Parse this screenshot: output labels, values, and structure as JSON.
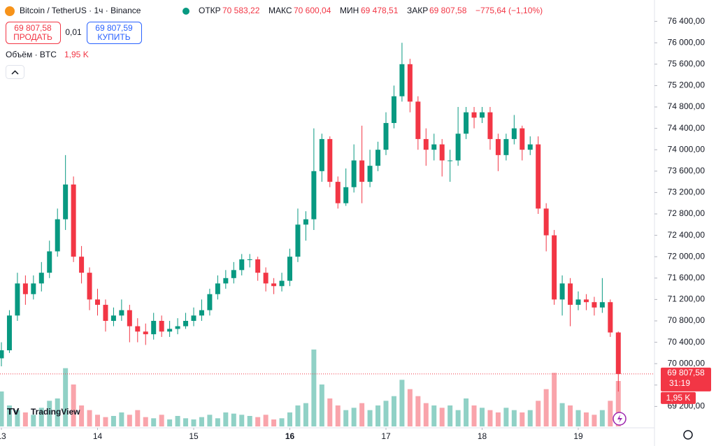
{
  "chart_data": {
    "type": "candlestick",
    "header": {
      "symbol": "Bitcoin / TetherUS · 1ч · Binance",
      "open_label": "ОТКР",
      "open": "70 583,22",
      "high_label": "МАКС",
      "high": "70 600,04",
      "low_label": "МИН",
      "low": "69 478,51",
      "close_label": "ЗАКР",
      "close": "69 807,58",
      "change": "−775,64 (−1,10%)"
    },
    "trade": {
      "sell_price": "69 807,58",
      "sell_label": "ПРОДАТЬ",
      "spread": "0,01",
      "buy_price": "69 807,59",
      "buy_label": "КУПИТЬ"
    },
    "volume_title": "Объём · BTC",
    "volume_label": "1,95 K",
    "logo": "TradingView",
    "price_line": {
      "value": 69807.58,
      "label": "69 807,58"
    },
    "countdown": "31:19",
    "up_color": "#089981",
    "down_color": "#f23645",
    "categories": [
      "13",
      null,
      null,
      null,
      null,
      null,
      null,
      null,
      null,
      null,
      null,
      null,
      "14",
      null,
      null,
      null,
      null,
      null,
      null,
      null,
      null,
      null,
      null,
      null,
      "15",
      null,
      null,
      null,
      null,
      null,
      null,
      null,
      null,
      null,
      null,
      null,
      "16",
      null,
      null,
      null,
      null,
      null,
      null,
      null,
      null,
      null,
      null,
      null,
      "17",
      null,
      null,
      null,
      null,
      null,
      null,
      null,
      null,
      null,
      null,
      null,
      "18",
      null,
      null,
      null,
      null,
      null,
      null,
      null,
      null,
      null,
      null,
      null,
      "19",
      null,
      null,
      null,
      null,
      null
    ],
    "open": [
      70100,
      70250,
      70900,
      71500,
      71300,
      71500,
      71700,
      72100,
      72700,
      73350,
      72000,
      71700,
      71200,
      71100,
      70800,
      70900,
      71000,
      70700,
      70600,
      70550,
      70800,
      70600,
      70650,
      70700,
      70800,
      70900,
      71000,
      71300,
      71500,
      71600,
      71750,
      71950,
      71950,
      71700,
      71500,
      71450,
      71550,
      72000,
      72600,
      72700,
      73600,
      74200,
      73400,
      73000,
      73300,
      73800,
      73400,
      73700,
      74000,
      74500,
      75000,
      75600,
      74900,
      74200,
      74000,
      74100,
      73800,
      73800,
      74300,
      74700,
      74600,
      74700,
      74200,
      73900,
      74200,
      74400,
      74000,
      74100,
      72900,
      72400,
      71200,
      71500,
      71100,
      71200,
      71150,
      71050,
      71150,
      70583.22
    ],
    "high": [
      70400,
      71000,
      71700,
      71650,
      71650,
      71900,
      72300,
      72900,
      73900,
      73500,
      72200,
      71800,
      71400,
      71200,
      71050,
      71200,
      71100,
      70850,
      70750,
      70950,
      70900,
      70800,
      70850,
      70950,
      71050,
      71200,
      71400,
      71650,
      71750,
      71900,
      72050,
      72050,
      72000,
      71800,
      71600,
      71700,
      72150,
      72900,
      72850,
      74400,
      74300,
      74250,
      73500,
      73650,
      74100,
      74450,
      74000,
      74150,
      74700,
      75200,
      76000,
      75700,
      75000,
      74400,
      74300,
      74200,
      74000,
      74800,
      74800,
      74800,
      74800,
      74800,
      74300,
      74300,
      74650,
      74450,
      74250,
      74250,
      73000,
      72500,
      71650,
      71600,
      71350,
      71300,
      71250,
      71600,
      71200,
      70600.04
    ],
    "low": [
      69950,
      70200,
      70800,
      71100,
      71200,
      71350,
      71600,
      72000,
      72500,
      71900,
      71500,
      71000,
      70900,
      70600,
      70700,
      70800,
      70400,
      70400,
      70350,
      70450,
      70500,
      70500,
      70550,
      70650,
      70700,
      70800,
      70900,
      71200,
      71400,
      71500,
      71650,
      71800,
      71550,
      71350,
      71300,
      71350,
      71450,
      71900,
      72300,
      72500,
      73400,
      73300,
      72900,
      72950,
      73200,
      73000,
      73300,
      73600,
      73900,
      74400,
      74900,
      74700,
      74000,
      73700,
      73800,
      73500,
      73400,
      73700,
      74200,
      74400,
      74500,
      74000,
      73600,
      73800,
      74100,
      73800,
      73900,
      72800,
      72100,
      71100,
      70900,
      70700,
      71000,
      71000,
      70900,
      70950,
      70500,
      69478.51
    ],
    "close": [
      70250,
      70900,
      71500,
      71300,
      71500,
      71700,
      72100,
      72700,
      73350,
      72000,
      71700,
      71200,
      71100,
      70800,
      70900,
      71000,
      70700,
      70600,
      70550,
      70800,
      70600,
      70650,
      70700,
      70800,
      70900,
      71000,
      71300,
      71500,
      71600,
      71750,
      71950,
      71950,
      71700,
      71500,
      71450,
      71550,
      72000,
      72600,
      72700,
      73600,
      74200,
      73400,
      73000,
      73300,
      73800,
      73400,
      73700,
      74000,
      74500,
      75000,
      75600,
      74900,
      74200,
      74000,
      74100,
      73800,
      73800,
      74300,
      74700,
      74600,
      74700,
      74200,
      73900,
      74200,
      74400,
      74000,
      74100,
      72900,
      72400,
      71200,
      71500,
      71100,
      71200,
      71150,
      71050,
      71150,
      70583.22,
      69807.58
    ],
    "volume": [
      1500,
      900,
      700,
      600,
      500,
      800,
      1100,
      1200,
      2500,
      1800,
      900,
      700,
      500,
      400,
      450,
      600,
      500,
      700,
      400,
      350,
      500,
      300,
      450,
      350,
      300,
      400,
      500,
      350,
      600,
      550,
      500,
      450,
      400,
      500,
      300,
      350,
      600,
      900,
      1000,
      3300,
      1800,
      1200,
      900,
      700,
      800,
      1000,
      700,
      900,
      1100,
      1300,
      2000,
      1600,
      1300,
      1000,
      900,
      800,
      900,
      700,
      1200,
      900,
      800,
      700,
      600,
      800,
      700,
      600,
      700,
      1100,
      1600,
      2300,
      1000,
      900,
      700,
      600,
      500,
      700,
      1100,
      1950
    ],
    "ylim": [
      68800,
      76800
    ],
    "volume_ylim": [
      0,
      6000
    ],
    "yticks": [
      {
        "value": 69200,
        "label": "69 200,00"
      },
      {
        "value": 69600,
        "label": "69 600,00"
      },
      {
        "value": 70000,
        "label": "70 000,00"
      },
      {
        "value": 70400,
        "label": "70 400,00"
      },
      {
        "value": 70800,
        "label": "70 800,00"
      },
      {
        "value": 71200,
        "label": "71 200,00"
      },
      {
        "value": 71600,
        "label": "71 600,00"
      },
      {
        "value": 72000,
        "label": "72 000,00"
      },
      {
        "value": 72400,
        "label": "72 400,00"
      },
      {
        "value": 72800,
        "label": "72 800,00"
      },
      {
        "value": 73200,
        "label": "73 200,00"
      },
      {
        "value": 73600,
        "label": "73 600,00"
      },
      {
        "value": 74000,
        "label": "74 000,00"
      },
      {
        "value": 74400,
        "label": "74 400,00"
      },
      {
        "value": 74800,
        "label": "74 800,00"
      },
      {
        "value": 75200,
        "label": "75 200,00"
      },
      {
        "value": 75600,
        "label": "75 600,00"
      },
      {
        "value": 76000,
        "label": "76 000,00"
      },
      {
        "value": 76400,
        "label": "76 400,00"
      }
    ]
  }
}
